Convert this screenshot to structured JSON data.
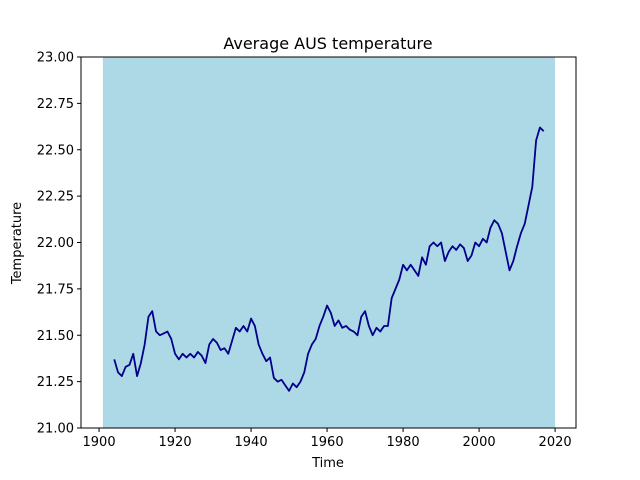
{
  "chart_data": {
    "type": "line",
    "title": "Average AUS temperature",
    "x_label": "Time",
    "y_label": "Temperature",
    "x": [
      1904,
      1905,
      1906,
      1907,
      1908,
      1909,
      1910,
      1911,
      1912,
      1913,
      1914,
      1915,
      1916,
      1917,
      1918,
      1919,
      1920,
      1921,
      1922,
      1923,
      1924,
      1925,
      1926,
      1927,
      1928,
      1929,
      1930,
      1931,
      1932,
      1933,
      1934,
      1935,
      1936,
      1937,
      1938,
      1939,
      1940,
      1941,
      1942,
      1943,
      1944,
      1945,
      1946,
      1947,
      1948,
      1949,
      1950,
      1951,
      1952,
      1953,
      1954,
      1955,
      1956,
      1957,
      1958,
      1959,
      1960,
      1961,
      1962,
      1963,
      1964,
      1965,
      1966,
      1967,
      1968,
      1969,
      1970,
      1971,
      1972,
      1973,
      1974,
      1975,
      1976,
      1977,
      1978,
      1979,
      1980,
      1981,
      1982,
      1983,
      1984,
      1985,
      1986,
      1987,
      1988,
      1989,
      1990,
      1991,
      1992,
      1993,
      1994,
      1995,
      1996,
      1997,
      1998,
      1999,
      2000,
      2001,
      2002,
      2003,
      2004,
      2005,
      2006,
      2007,
      2008,
      2009,
      2010,
      2011,
      2012,
      2013,
      2014,
      2015,
      2016,
      2017
    ],
    "series": [
      {
        "color": "#00008b",
        "values": [
          21.37,
          21.3,
          21.28,
          21.33,
          21.34,
          21.4,
          21.28,
          21.35,
          21.45,
          21.6,
          21.63,
          21.52,
          21.5,
          21.51,
          21.52,
          21.48,
          21.4,
          21.37,
          21.4,
          21.38,
          21.4,
          21.38,
          21.41,
          21.39,
          21.35,
          21.45,
          21.48,
          21.46,
          21.42,
          21.43,
          21.4,
          21.47,
          21.54,
          21.52,
          21.55,
          21.52,
          21.59,
          21.55,
          21.45,
          21.4,
          21.36,
          21.38,
          21.27,
          21.25,
          21.26,
          21.23,
          21.2,
          21.24,
          21.22,
          21.25,
          21.3,
          21.4,
          21.45,
          21.48,
          21.55,
          21.6,
          21.66,
          21.62,
          21.55,
          21.58,
          21.54,
          21.55,
          21.53,
          21.52,
          21.5,
          21.6,
          21.63,
          21.55,
          21.5,
          21.54,
          21.52,
          21.55,
          21.55,
          21.7,
          21.75,
          21.8,
          21.88,
          21.85,
          21.88,
          21.85,
          21.82,
          21.92,
          21.88,
          21.98,
          22.0,
          21.98,
          22.0,
          21.9,
          21.95,
          21.98,
          21.96,
          21.99,
          21.97,
          21.9,
          21.93,
          22.0,
          21.98,
          22.02,
          22.0,
          22.08,
          22.12,
          22.1,
          22.05,
          21.95,
          21.85,
          21.9,
          21.98,
          22.05,
          22.1,
          22.2,
          22.3,
          22.55,
          22.62,
          22.6
        ]
      }
    ],
    "span": [
      1901,
      2020
    ],
    "span_color": "#add8e6",
    "xlim": [
      1895.25,
      2025.5
    ],
    "xticks": [
      1900,
      1920,
      1940,
      1960,
      1980,
      2000,
      2020
    ],
    "ylim": [
      21,
      23
    ],
    "yticks": [
      {
        "value": 21,
        "label": "21.00"
      },
      {
        "value": 21.25,
        "label": "21.25"
      },
      {
        "value": 21.5,
        "label": "21.50"
      },
      {
        "value": 21.75,
        "label": "21.75"
      },
      {
        "value": 22,
        "label": "22.00"
      },
      {
        "value": 22.25,
        "label": "22.25"
      },
      {
        "value": 22.5,
        "label": "22.50"
      },
      {
        "value": 22.75,
        "label": "22.75"
      },
      {
        "value": 23,
        "label": "23.00"
      }
    ]
  }
}
